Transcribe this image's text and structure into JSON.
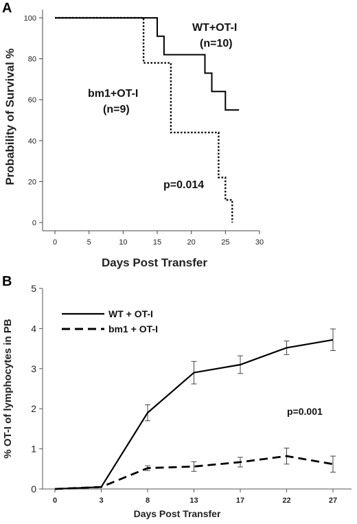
{
  "chart_data": [
    {
      "panel": "A",
      "type": "line",
      "subtype": "kaplan-meier-step",
      "xlabel": "Days Post Transfer",
      "ylabel": "Probability of Survival %",
      "xlim": [
        0,
        30
      ],
      "ylim": [
        0,
        100
      ],
      "xticks": [
        0,
        5,
        10,
        15,
        20,
        25,
        30
      ],
      "yticks": [
        0,
        20,
        40,
        60,
        80,
        100
      ],
      "series": [
        {
          "name": "WT+OT-I",
          "n_label": "(n=10)",
          "style": "solid",
          "points": [
            [
              0,
              100
            ],
            [
              15,
              100
            ],
            [
              15,
              91
            ],
            [
              16,
              91
            ],
            [
              16,
              82
            ],
            [
              22,
              82
            ],
            [
              22,
              73
            ],
            [
              23,
              73
            ],
            [
              23,
              64
            ],
            [
              25,
              64
            ],
            [
              25,
              55
            ],
            [
              27,
              55
            ]
          ]
        },
        {
          "name": "bm1+OT-I",
          "n_label": "(n=9)",
          "style": "dotted",
          "points": [
            [
              0,
              100
            ],
            [
              13,
              100
            ],
            [
              13,
              78
            ],
            [
              17,
              78
            ],
            [
              17,
              44
            ],
            [
              24,
              44
            ],
            [
              24,
              22
            ],
            [
              25,
              22
            ],
            [
              25,
              11
            ],
            [
              26,
              11
            ],
            [
              26,
              0
            ]
          ]
        }
      ],
      "annotations": [
        "p=0.014"
      ]
    },
    {
      "panel": "B",
      "type": "line",
      "xlabel": "Days Post Transfer",
      "ylabel": "% OT-I of lymphocytes in PB",
      "categories": [
        "0",
        "3",
        "8",
        "13",
        "17",
        "22",
        "27"
      ],
      "ylim": [
        0,
        5
      ],
      "yticks": [
        0,
        1,
        2,
        3,
        4,
        5
      ],
      "legend_position": "top-left",
      "series": [
        {
          "name": "WT + OT-I",
          "style": "solid",
          "values": [
            0.0,
            0.05,
            1.9,
            2.9,
            3.1,
            3.52,
            3.72
          ],
          "errors": [
            0,
            0,
            0.2,
            0.28,
            0.22,
            0.17,
            0.27
          ]
        },
        {
          "name": "bm1 + OT-I",
          "style": "dashed",
          "values": [
            0.0,
            0.05,
            0.52,
            0.56,
            0.67,
            0.82,
            0.62
          ],
          "errors": [
            0,
            0,
            0.06,
            0.12,
            0.12,
            0.2,
            0.2
          ]
        }
      ],
      "annotations": [
        "p=0.001"
      ]
    }
  ]
}
